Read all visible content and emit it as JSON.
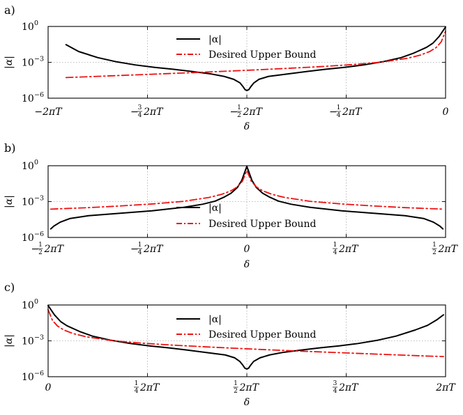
{
  "chart_data": [
    {
      "panel_label": "a)",
      "type": "line",
      "yscale": "log",
      "xlim": [
        -6.2832,
        0
      ],
      "ylim": [
        1e-06,
        1
      ],
      "xlabel": "δ",
      "ylabel": "|α|",
      "x_ticks": [
        {
          "value": -6.2832,
          "main": "−2πT"
        },
        {
          "value": -4.7124,
          "sign": "−",
          "num": "3",
          "den": "4",
          "tail": "2πT"
        },
        {
          "value": -3.1416,
          "sign": "−",
          "num": "1",
          "den": "2",
          "tail": "2πT"
        },
        {
          "value": -1.5708,
          "sign": "−",
          "num": "1",
          "den": "4",
          "tail": "2πT"
        },
        {
          "value": 0,
          "main": "0"
        }
      ],
      "y_ticks": [
        {
          "value": 1,
          "base": "10",
          "exp": "0"
        },
        {
          "value": 0.001,
          "base": "10",
          "exp": "−3"
        },
        {
          "value": 1e-06,
          "base": "10",
          "exp": "−6"
        }
      ],
      "legend": {
        "position": "upper-center"
      },
      "series": [
        {
          "name": "|α|",
          "color": "#000000",
          "style": "solid",
          "x": [
            -6.0,
            -5.8,
            -5.5,
            -5.2,
            -4.9,
            -4.6,
            -4.3,
            -4.0,
            -3.7,
            -3.5,
            -3.35,
            -3.25,
            -3.2,
            -3.17,
            -3.1416,
            -3.11,
            -3.08,
            -3.03,
            -2.95,
            -2.8,
            -2.5,
            -2.2,
            -1.9,
            -1.6,
            -1.3,
            -1.0,
            -0.7,
            -0.5,
            -0.3,
            -0.2,
            -0.1,
            0.0
          ],
          "y": [
            0.03,
            0.008,
            0.0025,
            0.0011,
            0.0006,
            0.00038,
            0.00026,
            0.00017,
            0.000105,
            6.6e-05,
            3.8e-05,
            1.9e-05,
            9e-06,
            5.2e-06,
            4.4e-06,
            5.2e-06,
            9e-06,
            1.9e-05,
            3.8e-05,
            6.6e-05,
            0.000105,
            0.00017,
            0.00026,
            0.00038,
            0.0006,
            0.0011,
            0.0025,
            0.006,
            0.018,
            0.04,
            0.15,
            0.9
          ]
        },
        {
          "name": "Desired Upper Bound",
          "color": "#ee1111",
          "style": "dashdot",
          "x": [
            -6.0,
            -5.5,
            -5.0,
            -4.5,
            -4.0,
            -3.5,
            -3.0,
            -2.5,
            -2.0,
            -1.5,
            -1.0,
            -0.6,
            -0.4,
            -0.25,
            -0.15,
            -0.07,
            0.0
          ],
          "y": [
            5.3e-05,
            6.7e-05,
            8.5e-05,
            0.000108,
            0.000137,
            0.000177,
            0.000233,
            0.000312,
            0.00043,
            0.00063,
            0.00105,
            0.0022,
            0.004,
            0.008,
            0.017,
            0.05,
            0.4
          ]
        }
      ]
    },
    {
      "panel_label": "b)",
      "type": "line",
      "yscale": "log",
      "xlim": [
        -3.1416,
        3.1416
      ],
      "ylim": [
        1e-06,
        1
      ],
      "xlabel": "δ",
      "ylabel": "|α|",
      "x_ticks": [
        {
          "value": -3.1416,
          "sign": "−",
          "num": "1",
          "den": "2",
          "tail": "2πT"
        },
        {
          "value": -1.5708,
          "sign": "−",
          "num": "1",
          "den": "4",
          "tail": "2πT"
        },
        {
          "value": 0,
          "main": "0"
        },
        {
          "value": 1.5708,
          "num": "1",
          "den": "4",
          "tail": "2πT"
        },
        {
          "value": 3.1416,
          "num": "1",
          "den": "2",
          "tail": "2πT"
        }
      ],
      "y_ticks": [
        {
          "value": 1,
          "base": "10",
          "exp": "0"
        },
        {
          "value": 0.001,
          "base": "10",
          "exp": "−3"
        },
        {
          "value": 1e-06,
          "base": "10",
          "exp": "−6"
        }
      ],
      "legend": {
        "position": "lower-center"
      },
      "series": [
        {
          "name": "|α|",
          "color": "#000000",
          "style": "solid",
          "x": [
            -3.1,
            -3.05,
            -2.95,
            -2.8,
            -2.5,
            -2.0,
            -1.5,
            -1.0,
            -0.7,
            -0.5,
            -0.35,
            -0.25,
            -0.15,
            -0.08,
            0.0,
            0.08,
            0.15,
            0.25,
            0.35,
            0.5,
            0.7,
            1.0,
            1.5,
            2.0,
            2.5,
            2.8,
            2.95,
            3.05,
            3.1
          ],
          "y": [
            5.2e-06,
            9e-06,
            1.9e-05,
            3.8e-05,
            6.6e-05,
            0.000105,
            0.00017,
            0.00033,
            0.0006,
            0.0011,
            0.0025,
            0.005,
            0.015,
            0.06,
            0.9,
            0.06,
            0.015,
            0.005,
            0.0025,
            0.0011,
            0.0006,
            0.00033,
            0.00017,
            0.000105,
            6.6e-05,
            3.8e-05,
            1.9e-05,
            9e-06,
            5.2e-06
          ]
        },
        {
          "name": "Desired Upper Bound",
          "color": "#ee1111",
          "style": "dashdot",
          "x": [
            -3.1,
            -2.5,
            -2.0,
            -1.5,
            -1.0,
            -0.6,
            -0.4,
            -0.25,
            -0.15,
            -0.07,
            0.0,
            0.07,
            0.15,
            0.25,
            0.4,
            0.6,
            1.0,
            1.5,
            2.0,
            2.5,
            3.1
          ],
          "y": [
            0.000233,
            0.000312,
            0.00043,
            0.00063,
            0.00105,
            0.0022,
            0.004,
            0.008,
            0.017,
            0.05,
            0.4,
            0.05,
            0.017,
            0.008,
            0.004,
            0.0022,
            0.00105,
            0.00063,
            0.00043,
            0.000312,
            0.000233
          ]
        }
      ]
    },
    {
      "panel_label": "c)",
      "type": "line",
      "yscale": "log",
      "xlim": [
        0,
        6.2832
      ],
      "ylim": [
        1e-06,
        1
      ],
      "xlabel": "δ",
      "ylabel": "|α|",
      "x_ticks": [
        {
          "value": 0,
          "main": "0"
        },
        {
          "value": 1.5708,
          "num": "1",
          "den": "4",
          "tail": "2πT"
        },
        {
          "value": 3.1416,
          "num": "1",
          "den": "2",
          "tail": "2πT"
        },
        {
          "value": 4.7124,
          "num": "3",
          "den": "4",
          "tail": "2πT"
        },
        {
          "value": 6.2832,
          "main": "2πT"
        }
      ],
      "y_ticks": [
        {
          "value": 1,
          "base": "10",
          "exp": "0"
        },
        {
          "value": 0.001,
          "base": "10",
          "exp": "−3"
        },
        {
          "value": 1e-06,
          "base": "10",
          "exp": "−6"
        }
      ],
      "legend": {
        "position": "upper-center"
      },
      "series": [
        {
          "name": "|α|",
          "color": "#000000",
          "style": "solid",
          "x": [
            0.0,
            0.1,
            0.2,
            0.3,
            0.5,
            0.7,
            1.0,
            1.3,
            1.6,
            1.9,
            2.2,
            2.5,
            2.8,
            2.95,
            3.03,
            3.08,
            3.11,
            3.1416,
            3.17,
            3.2,
            3.25,
            3.35,
            3.5,
            3.7,
            4.0,
            4.3,
            4.6,
            4.9,
            5.2,
            5.5,
            5.8,
            6.0,
            6.15,
            6.25
          ],
          "y": [
            0.9,
            0.15,
            0.04,
            0.018,
            0.006,
            0.0025,
            0.0011,
            0.0006,
            0.00038,
            0.00026,
            0.00017,
            0.000105,
            6.6e-05,
            3.8e-05,
            1.9e-05,
            9e-06,
            5.2e-06,
            4.4e-06,
            5.2e-06,
            9e-06,
            1.9e-05,
            3.8e-05,
            6.6e-05,
            0.000105,
            0.00017,
            0.00026,
            0.00038,
            0.0006,
            0.0011,
            0.0025,
            0.008,
            0.02,
            0.06,
            0.15
          ]
        },
        {
          "name": "Desired Upper Bound",
          "color": "#ee1111",
          "style": "dashdot",
          "x": [
            0.0,
            0.07,
            0.15,
            0.25,
            0.4,
            0.6,
            1.0,
            1.5,
            2.0,
            2.5,
            3.0,
            3.5,
            4.0,
            4.5,
            5.0,
            5.5,
            6.0,
            6.25
          ],
          "y": [
            0.4,
            0.05,
            0.017,
            0.008,
            0.004,
            0.0022,
            0.00105,
            0.00063,
            0.00043,
            0.000312,
            0.000233,
            0.000177,
            0.000137,
            0.000108,
            8.5e-05,
            6.7e-05,
            5.3e-05,
            4.9e-05
          ]
        }
      ]
    }
  ]
}
